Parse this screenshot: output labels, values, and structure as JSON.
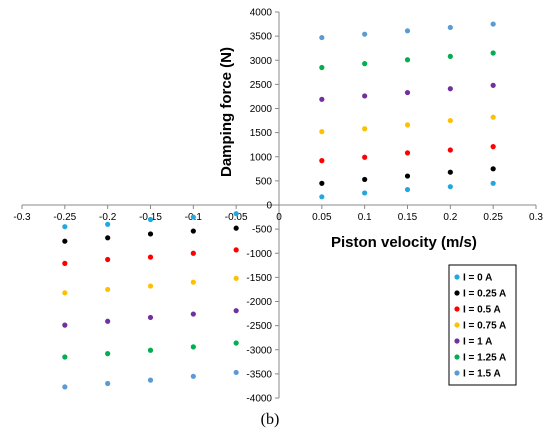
{
  "caption": "(b)",
  "chart_data": {
    "type": "scatter",
    "xlabel": "Piston velocity (m/s)",
    "ylabel": "Damping force (N)",
    "xlim": [
      -0.3,
      0.3
    ],
    "ylim": [
      -4000,
      4000
    ],
    "x_ticks": [
      "-0.3",
      "-0.25",
      "-0.2",
      "-0.15",
      "-0.1",
      "-0.05",
      "0",
      "0.05",
      "0.1",
      "0.15",
      "0.2",
      "0.25",
      "0.3"
    ],
    "y_ticks": [
      "-4000",
      "-3500",
      "-3000",
      "-2500",
      "-2000",
      "-1500",
      "-1000",
      "-500",
      "0",
      "500",
      "1000",
      "1500",
      "2000",
      "2500",
      "3000",
      "3500",
      "4000"
    ],
    "grid": false,
    "legend_position": "bottom-right",
    "x": [
      -0.25,
      -0.2,
      -0.15,
      -0.1,
      -0.05,
      0.05,
      0.1,
      0.15,
      0.2,
      0.25
    ],
    "series": [
      {
        "name": "I = 0 A",
        "color": "#22a7e0",
        "values": [
          -450,
          -400,
          -300,
          -250,
          -180,
          170,
          250,
          320,
          380,
          450
        ]
      },
      {
        "name": "I = 0.25 A",
        "color": "#000000",
        "values": [
          -750,
          -680,
          -600,
          -540,
          -480,
          450,
          530,
          600,
          680,
          750
        ]
      },
      {
        "name": "I = 0.5 A",
        "color": "#ff0000",
        "values": [
          -1210,
          -1130,
          -1080,
          -1000,
          -930,
          920,
          990,
          1080,
          1140,
          1210
        ]
      },
      {
        "name": "I = 0.75 A",
        "color": "#ffc000",
        "values": [
          -1820,
          -1750,
          -1680,
          -1600,
          -1520,
          1520,
          1580,
          1660,
          1750,
          1820
        ]
      },
      {
        "name": "I = 1 A",
        "color": "#7030a0",
        "values": [
          -2490,
          -2410,
          -2330,
          -2260,
          -2190,
          2190,
          2260,
          2330,
          2410,
          2480
        ]
      },
      {
        "name": "I = 1.25 A",
        "color": "#00b050",
        "values": [
          -3150,
          -3080,
          -3010,
          -2940,
          -2860,
          2850,
          2930,
          3010,
          3080,
          3150
        ]
      },
      {
        "name": "I = 1.5 A",
        "color": "#5b9bd5",
        "values": [
          -3770,
          -3700,
          -3630,
          -3550,
          -3470,
          3470,
          3540,
          3610,
          3680,
          3750
        ]
      }
    ]
  }
}
